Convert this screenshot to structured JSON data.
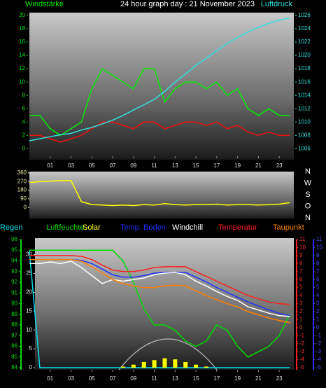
{
  "chart_data": [
    {
      "type": "line",
      "title": "24 hour graph day : 21 November 2023",
      "y_label": "Windstärke",
      "y2_label": "Luftdruck",
      "x": [
        -1,
        0,
        1,
        2,
        3,
        4,
        5,
        6,
        7,
        8,
        9,
        10,
        11,
        12,
        13,
        14,
        15,
        16,
        17,
        18,
        19,
        20,
        21,
        22,
        23,
        24
      ],
      "xlim": [
        -1,
        24.4
      ],
      "xticks": [
        {
          "value": 1,
          "label": "01"
        },
        {
          "value": 3,
          "label": "03"
        },
        {
          "value": 5,
          "label": "05"
        },
        {
          "value": 7,
          "label": "07"
        },
        {
          "value": 9,
          "label": "09"
        },
        {
          "value": 11,
          "label": "11"
        },
        {
          "value": 13,
          "label": "13"
        },
        {
          "value": 15,
          "label": "15"
        },
        {
          "value": 17,
          "label": "17"
        },
        {
          "value": 19,
          "label": "19"
        },
        {
          "value": 21,
          "label": "21"
        },
        {
          "value": 23,
          "label": "23"
        }
      ],
      "ylim": [
        -0.8,
        20.2
      ],
      "yticks": [
        0,
        2,
        4,
        6,
        8,
        10,
        12,
        14,
        16,
        18,
        20
      ],
      "y2lim": [
        1005.2,
        1026.2
      ],
      "y2ticks": [
        1006,
        1008,
        1010,
        1012,
        1014,
        1016,
        1018,
        1020,
        1022,
        1024,
        1026
      ],
      "series": [
        {
          "color": "#00ee00",
          "values": [
            5,
            5,
            3,
            2,
            3,
            4,
            9,
            12,
            11,
            10,
            9,
            12,
            12,
            7,
            9,
            10,
            10,
            9,
            10,
            8,
            9,
            6,
            5,
            6,
            5,
            5
          ]
        },
        {
          "color": "#ee1010",
          "values": [
            2,
            2,
            1.5,
            1,
            1.5,
            2,
            3,
            4,
            4,
            3.5,
            3,
            4,
            4,
            3,
            3.5,
            4,
            4,
            3.5,
            4,
            3,
            3.5,
            2.5,
            2,
            2.5,
            2,
            2
          ]
        },
        {
          "color": "#30e0e0",
          "axis": "y2",
          "values": [
            1007.2,
            1007.5,
            1007.8,
            1008.1,
            1008.3,
            1008.8,
            1009.2,
            1009.7,
            1010.3,
            1011.0,
            1011.8,
            1012.6,
            1013.4,
            1014.6,
            1016.0,
            1017.2,
            1018.5,
            1019.6,
            1020.7,
            1021.8,
            1022.7,
            1023.5,
            1024.2,
            1024.8,
            1025.3,
            1025.6
          ]
        }
      ]
    },
    {
      "type": "line",
      "x": [
        -1,
        0,
        1,
        2,
        3,
        4,
        5,
        6,
        7,
        8,
        9,
        10,
        11,
        12,
        13,
        14,
        15,
        16,
        17,
        18,
        19,
        20,
        21,
        22,
        23,
        24
      ],
      "xlim": [
        -1,
        24.4
      ],
      "ylim": [
        -115,
        367
      ],
      "yticks": [
        0,
        90,
        180,
        270,
        360
      ],
      "compass": [
        "N",
        "W",
        "S",
        "O",
        "N"
      ],
      "series": [
        {
          "color": "#ffff00",
          "values": [
            260,
            270,
            275,
            280,
            280,
            60,
            30,
            25,
            20,
            25,
            20,
            30,
            25,
            40,
            30,
            25,
            30,
            30,
            35,
            25,
            30,
            30,
            25,
            30,
            35,
            50
          ]
        }
      ]
    },
    {
      "type": "line",
      "x": [
        -1,
        0,
        1,
        2,
        3,
        4,
        5,
        6,
        7,
        8,
        9,
        10,
        11,
        12,
        13,
        14,
        15,
        16,
        17,
        18,
        19,
        20,
        21,
        22,
        23,
        24
      ],
      "xlim": [
        -1,
        24.4
      ],
      "xticks": [
        {
          "value": 1,
          "label": "01"
        },
        {
          "value": 3,
          "label": "03"
        },
        {
          "value": 5,
          "label": "05"
        },
        {
          "value": 7,
          "label": "07"
        },
        {
          "value": 9,
          "label": "09"
        },
        {
          "value": 11,
          "label": "11"
        },
        {
          "value": 13,
          "label": "13"
        },
        {
          "value": 15,
          "label": "15"
        },
        {
          "value": 17,
          "label": "17"
        },
        {
          "value": 19,
          "label": "19"
        },
        {
          "value": 21,
          "label": "21"
        },
        {
          "value": 23,
          "label": "23"
        }
      ],
      "ylim": [
        84,
        96
      ],
      "yticks": [
        84,
        85,
        86,
        87,
        88,
        89,
        90,
        91,
        92,
        93,
        94,
        95,
        96
      ],
      "y3lim": [
        0,
        34
      ],
      "y3ticks": [
        0,
        5,
        10,
        15,
        20,
        25,
        30
      ],
      "y2lim": [
        -5,
        11
      ],
      "y2ticks": [
        -5,
        -4,
        -3,
        -2,
        -1,
        0,
        1,
        2,
        3,
        4,
        5,
        6,
        7,
        8,
        9,
        10,
        11
      ],
      "y4lim": [
        -5,
        11
      ],
      "y4ticks": [
        -5,
        -4,
        -3,
        -2,
        -1,
        0,
        1,
        2,
        3,
        4,
        5,
        6,
        7,
        8,
        9,
        10,
        11
      ],
      "series": [
        {
          "name": "Regen",
          "color": "#00e0f0",
          "axis": "y3",
          "values": [
            31,
            0,
            0,
            0,
            0,
            0,
            0,
            0,
            0,
            0,
            0,
            0,
            0,
            0,
            0,
            0,
            0,
            0,
            0,
            0,
            0,
            0,
            0,
            0,
            0,
            0
          ]
        },
        {
          "name": "Luftfeuchte",
          "color": "#00dd00",
          "values": [
            95,
            95,
            95,
            95,
            95,
            95,
            95,
            95,
            95,
            94,
            92,
            89.5,
            88,
            88,
            87.5,
            86.5,
            86,
            86.5,
            88,
            87.5,
            86,
            85,
            85.5,
            86,
            87,
            89
          ]
        },
        {
          "name": "Solar",
          "color": "#ffff00",
          "axis": "y3",
          "style": "bar",
          "values": [
            0,
            0,
            0,
            0,
            0,
            0,
            0,
            0,
            0,
            0.3,
            0.8,
            1.5,
            2,
            2.5,
            2.2,
            1.5,
            0.8,
            0.3,
            0,
            0,
            0,
            0,
            0,
            0,
            0,
            0
          ]
        },
        {
          "name": "Temp. Boden",
          "color": "#2030ff",
          "axis": "y2",
          "values": [
            8.5,
            8.5,
            8.5,
            8.5,
            8.5,
            8.4,
            8,
            7.3,
            6.6,
            6.3,
            6.3,
            6.5,
            6.8,
            6.9,
            6.9,
            6.9,
            6.3,
            5.7,
            5,
            4.4,
            3.8,
            3.2,
            2.7,
            2.2,
            1.8,
            1.5
          ]
        },
        {
          "name": "Windchill",
          "color": "#ffffff",
          "axis": "y2",
          "values": [
            8,
            8,
            8.2,
            8,
            8.3,
            7.5,
            6.5,
            5.5,
            6,
            5.8,
            6,
            6.2,
            6.6,
            6.8,
            6.9,
            6.6,
            5.8,
            5.2,
            4.5,
            3.9,
            3.4,
            2.6,
            2.2,
            1.8,
            1.5,
            1.4
          ]
        },
        {
          "name": "Temperatur",
          "color": "#ff2020",
          "axis": "y2",
          "values": [
            9,
            9,
            9,
            9,
            9,
            8.9,
            8.5,
            7.8,
            7.2,
            7,
            7,
            7.2,
            7.5,
            7.6,
            7.6,
            7.6,
            7,
            6.4,
            5.8,
            5.2,
            4.6,
            4,
            3.6,
            3.2,
            3,
            2.9
          ]
        },
        {
          "name": "Taupunkt",
          "color": "#ff8000",
          "axis": "y2",
          "values": [
            8.5,
            8.5,
            8.5,
            8.5,
            8.5,
            8.3,
            7.6,
            6.8,
            6,
            5.5,
            5.2,
            5,
            5,
            5.2,
            5.3,
            5.2,
            4.6,
            4,
            3.5,
            3,
            2.6,
            2,
            1.6,
            1.2,
            0.9,
            0.6
          ]
        }
      ]
    }
  ]
}
